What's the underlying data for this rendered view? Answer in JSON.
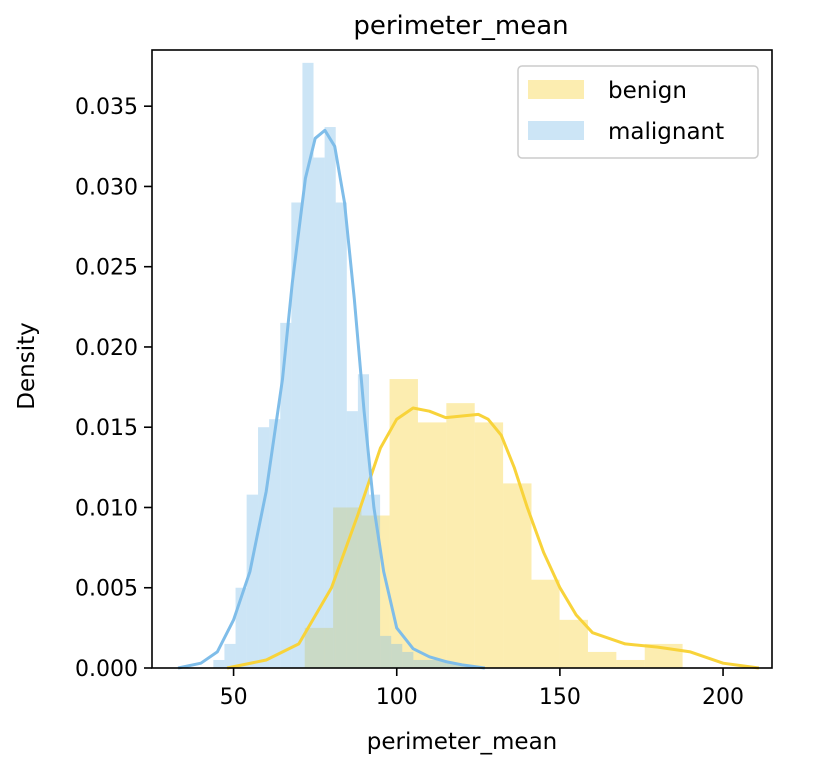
{
  "chart_data": {
    "type": "histogram+kde",
    "title": "perimeter_mean",
    "xlabel": "perimeter_mean",
    "ylabel": "Density",
    "xlim": [
      25,
      215
    ],
    "ylim": [
      0,
      0.0385
    ],
    "xticks": [
      50,
      100,
      150,
      200
    ],
    "yticks": [
      0.0,
      0.005,
      0.01,
      0.015,
      0.02,
      0.025,
      0.03,
      0.035
    ],
    "ytick_labels": [
      "0.000",
      "0.005",
      "0.010",
      "0.015",
      "0.020",
      "0.025",
      "0.030",
      "0.035"
    ],
    "grid": false,
    "legend_position": "top-right",
    "series": [
      {
        "name": "benign",
        "color": "#f8d33a",
        "bars": {
          "edges": [
            71.8,
            80.5,
            89.2,
            97.8,
            106.5,
            115.2,
            123.9,
            132.6,
            141.3,
            149.9,
            158.6,
            167.3,
            176.0,
            187.6
          ],
          "heights": [
            0.0025,
            0.01,
            0.0095,
            0.018,
            0.0153,
            0.0165,
            0.0153,
            0.0115,
            0.0055,
            0.003,
            0.001,
            0.0005,
            0.0015
          ]
        },
        "kde": {
          "x": [
            48,
            60,
            70,
            80,
            88,
            95,
            100,
            105,
            110,
            115,
            120,
            125,
            128,
            132,
            136,
            140,
            145,
            150,
            155,
            160,
            170,
            180,
            190,
            200,
            211
          ],
          "y": [
            0.0,
            0.0005,
            0.0015,
            0.005,
            0.0095,
            0.0137,
            0.0155,
            0.0162,
            0.016,
            0.0156,
            0.0157,
            0.0158,
            0.0155,
            0.0145,
            0.0125,
            0.01,
            0.0072,
            0.005,
            0.0033,
            0.0022,
            0.0015,
            0.0013,
            0.001,
            0.0003,
            0.0
          ]
        }
      },
      {
        "name": "malignant",
        "color": "#7fbde9",
        "bars": {
          "edges": [
            43.8,
            47.2,
            50.6,
            54.0,
            57.5,
            60.9,
            64.3,
            67.7,
            71.1,
            74.5,
            77.9,
            81.3,
            84.7,
            88.1,
            91.5,
            94.9,
            98.3,
            101.7,
            105.1,
            108.5,
            111.9,
            115.3,
            118.7,
            122.1
          ],
          "heights": [
            0.0005,
            0.0015,
            0.005,
            0.0108,
            0.015,
            0.0155,
            0.0215,
            0.029,
            0.0377,
            0.0318,
            0.0337,
            0.029,
            0.016,
            0.0183,
            0.0108,
            0.002,
            0.0015,
            0.001,
            0.0005,
            0.0005,
            0.0005,
            0.0003,
            0.0002
          ]
        },
        "kde": {
          "x": [
            33,
            40,
            45,
            50,
            55,
            60,
            65,
            68,
            72,
            75,
            78,
            81,
            84,
            87,
            90,
            93,
            96,
            100,
            105,
            110,
            115,
            120,
            127
          ],
          "y": [
            0.0,
            0.0003,
            0.001,
            0.003,
            0.006,
            0.011,
            0.018,
            0.024,
            0.0305,
            0.033,
            0.0335,
            0.0325,
            0.029,
            0.023,
            0.016,
            0.01,
            0.006,
            0.0025,
            0.0012,
            0.0007,
            0.0004,
            0.0002,
            0.0
          ]
        }
      }
    ]
  }
}
